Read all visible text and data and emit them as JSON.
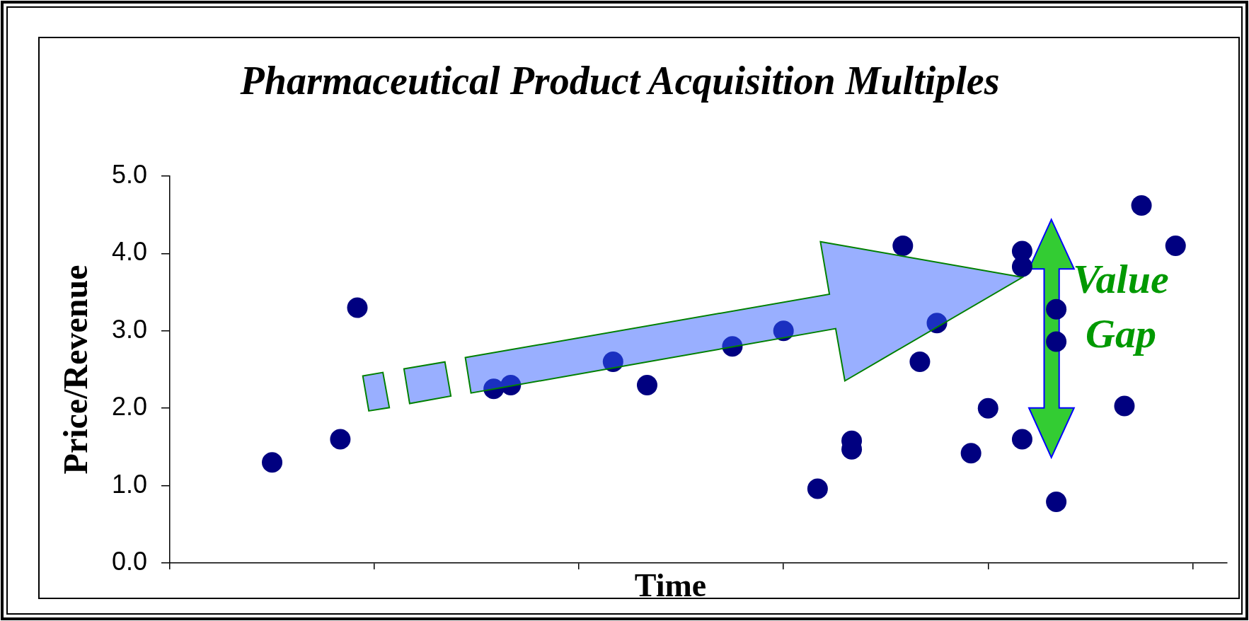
{
  "chart_data": {
    "type": "scatter",
    "title": "Pharmaceutical Product Acquisition Multiples",
    "xlabel": "Time",
    "ylabel": "Price/Revenue",
    "annotations": [
      "Value Gap"
    ],
    "categories": [
      null,
      null,
      null,
      null,
      null,
      null,
      null,
      null,
      null,
      null,
      null,
      null,
      null,
      null,
      null,
      null,
      null,
      null,
      null,
      null,
      null,
      null,
      null,
      null,
      null,
      null,
      null,
      null,
      null,
      null,
      null,
      null,
      null,
      null,
      null,
      null,
      null,
      null,
      null,
      null,
      null,
      null,
      null,
      null,
      null,
      null,
      null,
      null,
      null,
      null,
      null,
      null,
      null,
      null,
      null,
      null,
      null,
      null,
      null,
      null,
      null,
      null,
      null
    ],
    "series": [
      {
        "color": "#000080",
        "values": [
          null,
          null,
          null,
          null,
          null,
          null,
          1.3,
          null,
          null,
          null,
          1.6,
          3.3,
          null,
          null,
          null,
          null,
          null,
          null,
          null,
          2.25,
          2.3,
          null,
          null,
          null,
          null,
          null,
          2.6,
          null,
          2.3,
          null,
          null,
          null,
          null,
          2.8,
          null,
          null,
          3.0,
          null,
          0.96,
          null,
          1.58,
          null,
          null,
          4.1,
          2.6,
          3.1,
          null,
          1.42,
          2.0,
          null,
          4.03,
          null,
          3.28,
          null,
          null,
          null,
          2.03,
          4.62,
          null,
          4.1,
          null,
          null,
          null
        ]
      },
      {
        "color": "#000080",
        "values": [
          null,
          null,
          null,
          null,
          null,
          null,
          null,
          null,
          null,
          null,
          null,
          null,
          null,
          null,
          null,
          null,
          null,
          null,
          null,
          null,
          null,
          null,
          null,
          null,
          null,
          null,
          null,
          null,
          null,
          null,
          null,
          null,
          null,
          null,
          null,
          null,
          null,
          null,
          null,
          null,
          1.47,
          null,
          null,
          null,
          null,
          null,
          null,
          null,
          null,
          null,
          3.83,
          null,
          2.86,
          null,
          null,
          null,
          null,
          null,
          null,
          null,
          null,
          null,
          null
        ]
      },
      {
        "color": "#000080",
        "values": [
          null,
          null,
          null,
          null,
          null,
          null,
          null,
          null,
          null,
          null,
          null,
          null,
          null,
          null,
          null,
          null,
          null,
          null,
          null,
          null,
          null,
          null,
          null,
          null,
          null,
          null,
          null,
          null,
          null,
          null,
          null,
          null,
          null,
          null,
          null,
          null,
          null,
          null,
          null,
          null,
          null,
          null,
          null,
          null,
          null,
          null,
          null,
          null,
          null,
          null,
          1.6,
          null,
          0.79,
          null,
          null,
          null,
          null,
          null,
          null,
          null,
          null,
          null,
          null
        ]
      }
    ],
    "marker": "circle",
    "ylim": [
      0,
      5
    ],
    "yticks": [
      {
        "value": 0,
        "label": "0.0"
      },
      {
        "value": 1,
        "label": "1.0"
      },
      {
        "value": 2,
        "label": "2.0"
      },
      {
        "value": 3,
        "label": "3.0"
      },
      {
        "value": 4,
        "label": "4.0"
      },
      {
        "value": 5,
        "label": "5.0"
      }
    ],
    "tick_labels": "y",
    "legend": false
  }
}
